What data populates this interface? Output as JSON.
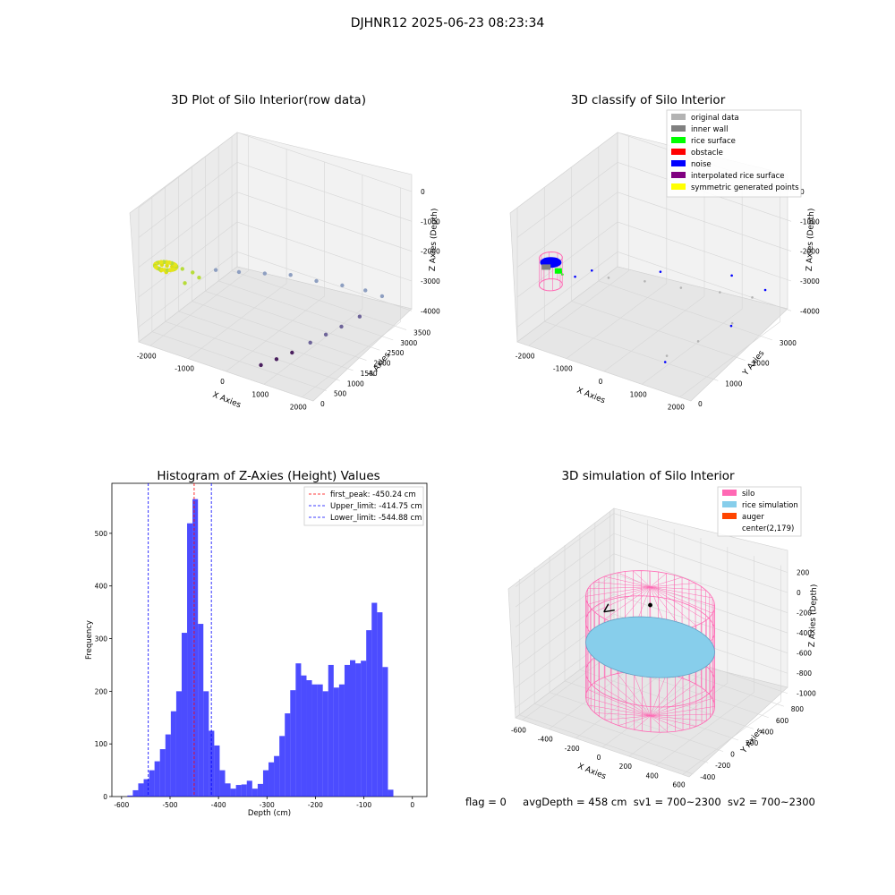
{
  "figure": {
    "title": "DJHNR12 2025-06-23 08:23:34",
    "status": {
      "flag": "flag = 0",
      "avg_depth": "avgDepth = 458 cm",
      "sv1": "sv1 = 700~2300",
      "sv2": "sv2 = 700~2300"
    }
  },
  "chart_data": [
    {
      "type": "scatter",
      "projection": "3d",
      "title": "3D Plot of Silo Interior(row data)",
      "xlabel": "X Axies",
      "ylabel": "Y Axies",
      "zlabel": "Z Axies (Depth)",
      "x_ticks": [
        "-2000",
        "-1000",
        "0",
        "1000",
        "2000"
      ],
      "y_ticks": [
        "0",
        "500",
        "1000",
        "1500",
        "2000",
        "2500",
        "3000",
        "3500"
      ],
      "z_ticks": [
        "0",
        "-1000",
        "-2000",
        "-3000",
        "-4000"
      ],
      "xlim": [
        -2300,
        2300
      ],
      "ylim": [
        0,
        3700
      ],
      "zlim": [
        -4500,
        0
      ],
      "colormap": [
        "#440154",
        "#6a5b8f",
        "#8ea2c4",
        "#9fd15a",
        "#e6e51a"
      ],
      "series": [
        {
          "color": "#dede10",
          "points": [
            [
              -1900,
              300,
              -1950
            ],
            [
              -1800,
              350,
              -1970
            ],
            [
              -1700,
              400,
              -1990
            ],
            [
              -1850,
              200,
              -2050
            ],
            [
              -1750,
              250,
              -2100
            ]
          ]
        },
        {
          "color": "#b7dc3a",
          "points": [
            [
              -1500,
              500,
              -2050
            ],
            [
              -1300,
              600,
              -2150
            ],
            [
              -1200,
              700,
              -2350
            ],
            [
              -1400,
              450,
              -2450
            ]
          ]
        },
        {
          "color": "#8e9fc1",
          "points": [
            [
              -900,
              900,
              -2100
            ],
            [
              -500,
              1200,
              -2200
            ],
            [
              -100,
              1600,
              -2350
            ],
            [
              300,
              2000,
              -2500
            ],
            [
              700,
              2400,
              -2800
            ],
            [
              1100,
              2800,
              -3050
            ],
            [
              1500,
              3100,
              -3250
            ],
            [
              1800,
              3300,
              -3450
            ]
          ]
        },
        {
          "color": "#6e6499",
          "points": [
            [
              1700,
              2600,
              -3700
            ],
            [
              1500,
              2200,
              -3850
            ],
            [
              1300,
              1900,
              -4000
            ],
            [
              1100,
              1600,
              -4150
            ]
          ]
        },
        {
          "color": "#4a1f5e",
          "points": [
            [
              900,
              1200,
              -4300
            ],
            [
              700,
              900,
              -4400
            ],
            [
              500,
              600,
              -4480
            ]
          ]
        }
      ]
    },
    {
      "type": "scatter",
      "projection": "3d",
      "title": "3D classify of Silo Interior",
      "xlabel": "X Axies",
      "ylabel": "Y Axies",
      "zlabel": "Z Axies (Depth)",
      "x_ticks": [
        "-2000",
        "-1000",
        "0",
        "1000",
        "2000"
      ],
      "y_ticks": [
        "0",
        "1000",
        "2000",
        "3000"
      ],
      "z_ticks": [
        "0",
        "-1000",
        "-2000",
        "-3000",
        "-4000"
      ],
      "xlim": [
        -2300,
        2300
      ],
      "ylim": [
        0,
        3700
      ],
      "zlim": [
        -4500,
        0
      ],
      "legend_position": "upper right",
      "legend": [
        {
          "label": "original data",
          "color": "#b3b3b3"
        },
        {
          "label": "inner wall",
          "color": "#808080"
        },
        {
          "label": "rice surface",
          "color": "#00ff00"
        },
        {
          "label": "obstacle",
          "color": "#ff0000"
        },
        {
          "label": "noise",
          "color": "#0000ff"
        },
        {
          "label": "interpolated rice surface",
          "color": "#800080"
        },
        {
          "label": "symmetric generated points",
          "color": "#ffff00"
        }
      ],
      "series": [
        {
          "name": "original data",
          "color": "#b3b3b3",
          "points": [
            [
              -600,
              1000,
              -2300
            ],
            [
              0,
              1500,
              -2500
            ],
            [
              600,
              2000,
              -2800
            ],
            [
              1200,
              2600,
              -3100
            ],
            [
              1700,
              3100,
              -3400
            ],
            [
              1600,
              2500,
              -3900
            ],
            [
              1200,
              1800,
              -4200
            ],
            [
              800,
              1200,
              -4450
            ]
          ]
        },
        {
          "name": "noise",
          "color": "#0000ff",
          "points": [
            [
              -1500,
              400,
              -2100
            ],
            [
              -1200,
              600,
              -2250
            ],
            [
              -900,
              800,
              -2050
            ],
            [
              200,
              1800,
              -2300
            ],
            [
              1300,
              2900,
              -2700
            ],
            [
              1900,
              3300,
              -3200
            ],
            [
              1500,
              2600,
              -4100
            ],
            [
              900,
              1000,
              -4480
            ]
          ]
        },
        {
          "name": "rice surface",
          "color": "#00ff00",
          "points": [
            [
              -1500,
              500,
              -2150
            ],
            [
              -1450,
              480,
              -2200
            ]
          ]
        }
      ],
      "silo_cylinder": {
        "center_x": -1700,
        "center_y": 400,
        "radius": 250,
        "z_top": -1700,
        "z_bottom": -2600,
        "color": "#ff69b4"
      }
    },
    {
      "type": "bar",
      "title": "Histogram of Z-Axies (Height) Values",
      "xlabel": "Depth (cm)",
      "ylabel": "Frequency",
      "xlim": [
        -620,
        30
      ],
      "ylim": [
        0,
        595
      ],
      "x_ticks": [
        -600,
        -500,
        -400,
        -300,
        -200,
        -100,
        0
      ],
      "y_ticks": [
        0,
        100,
        200,
        300,
        400,
        500
      ],
      "bar_color": "#0000ff",
      "bin_start": -588,
      "bin_width": 11.2,
      "counts": [
        2,
        12,
        25,
        33,
        50,
        67,
        90,
        118,
        162,
        200,
        311,
        519,
        565,
        328,
        200,
        125,
        97,
        50,
        25,
        15,
        22,
        23,
        30,
        15,
        24,
        50,
        65,
        77,
        115,
        158,
        202,
        253,
        230,
        221,
        213,
        213,
        200,
        250,
        207,
        213,
        250,
        259,
        253,
        258,
        316,
        368,
        350,
        246,
        13
      ],
      "vlines": [
        {
          "label": "first_peak: -450.24 cm",
          "x": -450.24,
          "color": "#ff0000"
        },
        {
          "label": "Upper_limit: -414.75 cm",
          "x": -414.75,
          "color": "#0000ff"
        },
        {
          "label": "Lower_limit: -544.88 cm",
          "x": -544.88,
          "color": "#0000ff"
        }
      ],
      "legend_position": "upper right"
    },
    {
      "type": "surface",
      "projection": "3d",
      "title": "3D simulation of Silo Interior",
      "xlabel": "X Axies",
      "ylabel": "Y Axies",
      "zlabel": "Z Axies (Depth)",
      "x_ticks": [
        "-600",
        "-400",
        "-200",
        "0",
        "200",
        "400",
        "600"
      ],
      "y_ticks": [
        "-400",
        "-200",
        "0",
        "200",
        "400",
        "600",
        "800"
      ],
      "z_ticks": [
        "200",
        "0",
        "-200",
        "-400",
        "-600",
        "-800",
        "-1000"
      ],
      "xlim": [
        -650,
        650
      ],
      "ylim": [
        -450,
        850
      ],
      "zlim": [
        -1100,
        250
      ],
      "legend_position": "upper right",
      "legend": [
        {
          "label": "silo",
          "color": "#ff69b4"
        },
        {
          "label": "rice simulation",
          "color": "#87ceeb"
        },
        {
          "label": "auger",
          "color": "#ff4500"
        },
        {
          "label": "center(2,179)",
          "color": ""
        }
      ],
      "silo": {
        "center_x": 2,
        "center_y": 179,
        "radius": 420,
        "z_top": 0,
        "z_bottom": -1000
      },
      "rice_surface_depth": -458,
      "center": [
        2,
        179
      ]
    }
  ]
}
